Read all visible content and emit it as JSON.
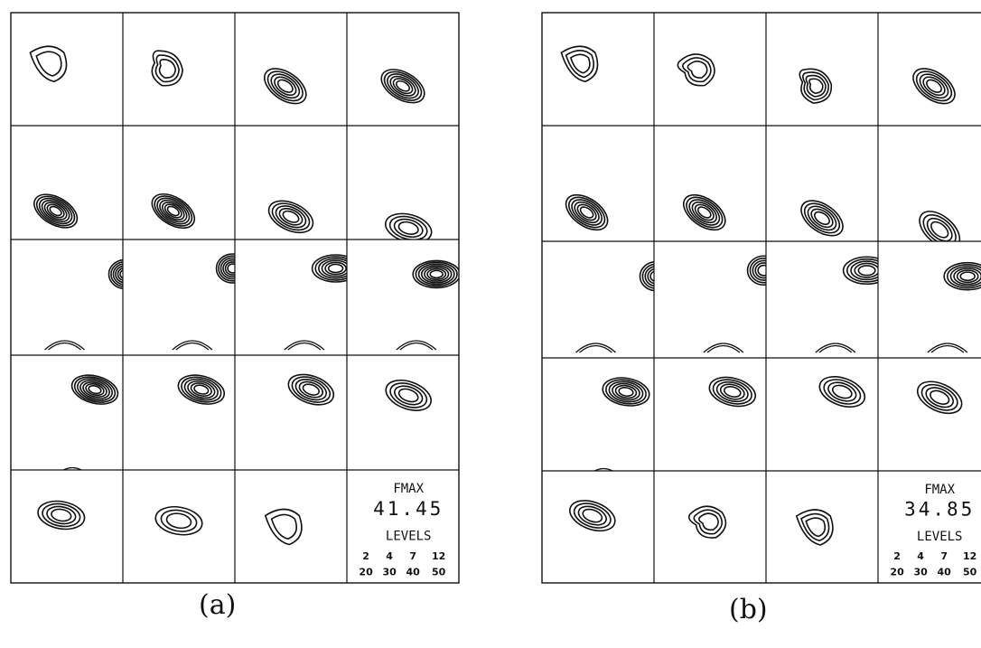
{
  "panels": [
    {
      "caption": "(a)",
      "fmax_label": "FMAX",
      "fmax_value": "41.45",
      "levels_label": "LEVELS",
      "levels_row1": [
        "2",
        "4",
        "7",
        "12"
      ],
      "levels_row2": [
        "20",
        "30",
        "40",
        "50"
      ],
      "cells": [
        {
          "ring_count": 2,
          "shape": "triangle",
          "rotation": 0
        },
        {
          "ring_count": 3,
          "shape": "lobed",
          "rotation": 40
        },
        {
          "ring_count": 5,
          "shape": "ellipse",
          "rotation": 35
        },
        {
          "ring_count": 6,
          "shape": "ellipse",
          "rotation": 30
        },
        {
          "ring_count": 7,
          "shape": "ellipse",
          "rotation": 30
        },
        {
          "ring_count": 7,
          "shape": "ellipse",
          "rotation": 32
        },
        {
          "ring_count": 5,
          "shape": "ellipse",
          "rotation": 25
        },
        {
          "ring_count": 4,
          "shape": "ellipse",
          "rotation": 15
        },
        {
          "ring_count": 6,
          "shape": "edge",
          "rotation": 0
        },
        {
          "ring_count": 6,
          "shape": "edge",
          "rotation": 0
        },
        {
          "ring_count": 6,
          "shape": "ellipse",
          "rotation": 0
        },
        {
          "ring_count": 7,
          "shape": "ellipse",
          "rotation": 0
        },
        {
          "ring_count": 7,
          "shape": "ellipse",
          "rotation": 15
        },
        {
          "ring_count": 6,
          "shape": "ellipse",
          "rotation": 15
        },
        {
          "ring_count": 5,
          "shape": "ellipse",
          "rotation": 20
        },
        {
          "ring_count": 4,
          "shape": "ellipse",
          "rotation": 20
        },
        {
          "ring_count": 4,
          "shape": "ellipse",
          "rotation": 10
        },
        {
          "ring_count": 3,
          "shape": "ellipse",
          "rotation": 10
        },
        {
          "ring_count": 2,
          "shape": "triangle",
          "rotation": 0
        }
      ]
    },
    {
      "caption": "(b)",
      "fmax_label": "FMAX",
      "fmax_value": "34.85",
      "levels_label": "LEVELS",
      "levels_row1": [
        "2",
        "4",
        "7",
        "12"
      ],
      "levels_row2": [
        "20",
        "30",
        "40",
        "50"
      ],
      "cells": [
        {
          "ring_count": 3,
          "shape": "triangle",
          "rotation": 0
        },
        {
          "ring_count": 3,
          "shape": "lobed",
          "rotation": 0
        },
        {
          "ring_count": 4,
          "shape": "lobed",
          "rotation": 30
        },
        {
          "ring_count": 5,
          "shape": "ellipse",
          "rotation": 35
        },
        {
          "ring_count": 6,
          "shape": "ellipse",
          "rotation": 35
        },
        {
          "ring_count": 6,
          "shape": "ellipse",
          "rotation": 35
        },
        {
          "ring_count": 5,
          "shape": "ellipse",
          "rotation": 35
        },
        {
          "ring_count": 4,
          "shape": "ellipse",
          "rotation": 40
        },
        {
          "ring_count": 5,
          "shape": "edge",
          "rotation": 0
        },
        {
          "ring_count": 5,
          "shape": "edge",
          "rotation": 0
        },
        {
          "ring_count": 5,
          "shape": "ellipse",
          "rotation": 0
        },
        {
          "ring_count": 6,
          "shape": "ellipse",
          "rotation": 0
        },
        {
          "ring_count": 6,
          "shape": "ellipse",
          "rotation": 10
        },
        {
          "ring_count": 5,
          "shape": "ellipse",
          "rotation": 15
        },
        {
          "ring_count": 4,
          "shape": "ellipse",
          "rotation": 20
        },
        {
          "ring_count": 4,
          "shape": "ellipse",
          "rotation": 25
        },
        {
          "ring_count": 4,
          "shape": "ellipse",
          "rotation": 20
        },
        {
          "ring_count": 3,
          "shape": "lobed",
          "rotation": 0
        },
        {
          "ring_count": 3,
          "shape": "triangle",
          "rotation": 0
        }
      ]
    }
  ]
}
